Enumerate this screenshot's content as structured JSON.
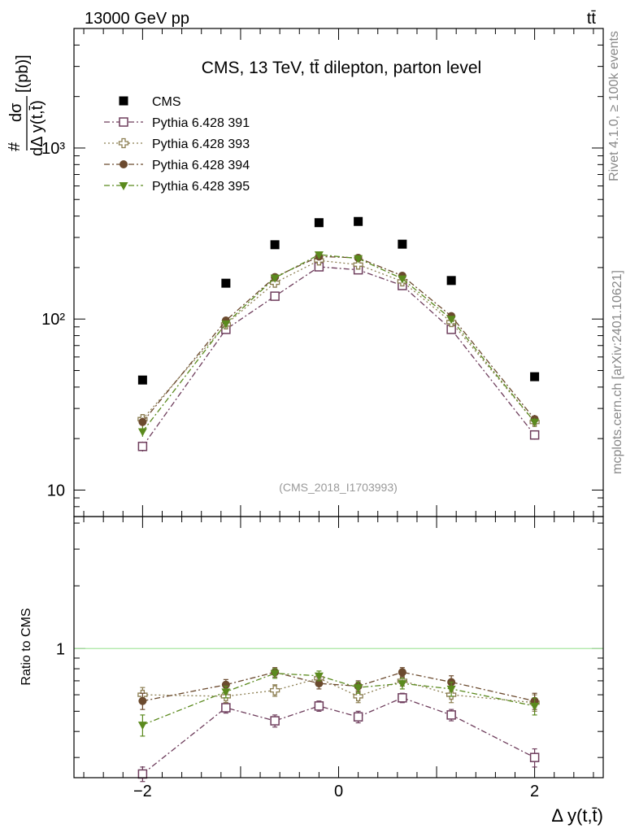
{
  "header": {
    "left": "13000 GeV pp",
    "right": "tt̄"
  },
  "side_labels": {
    "rivet": "Rivet 4.1.0, ≥ 100k events",
    "mcplots": "mcplots.cern.ch [arXiv:2401.10621]"
  },
  "chart_data": {
    "type": "scatter",
    "title": "CMS, 13 TeV, tt̄ dilepton, parton level",
    "analysis_tag": "(CMS_2018_I1703993)",
    "xlabel": "Δ y(t,t̄)",
    "ylabel_top": "#",
    "ylabel_num": "dσ",
    "ylabel_den": "dΔ y(t,t̄)",
    "ylabel_unit": "[(pb)]",
    "ratio_ylabel": "Ratio to CMS",
    "xlim": [
      -2.7,
      2.7
    ],
    "ylim": [
      7,
      5000
    ],
    "yscale": "log",
    "ratio_ylim": [
      0.24,
      4.3
    ],
    "ratio_yscale": "log",
    "x_ticks": [
      "−2",
      "0",
      "2"
    ],
    "x_tick_values": [
      -2,
      0,
      2
    ],
    "y_ticks": [
      "10",
      "10²",
      "10³"
    ],
    "y_tick_values": [
      10,
      100,
      1000
    ],
    "ratio_y_ticks": [
      "1"
    ],
    "ratio_y_tick_values": [
      1
    ],
    "x": [
      -2.0,
      -1.15,
      -0.65,
      -0.2,
      0.2,
      0.65,
      1.15,
      2.0
    ],
    "legend_position": "top-left",
    "series": [
      {
        "name": "CMS",
        "marker": "square-filled",
        "color": "#000000",
        "line": "none",
        "values": [
          44,
          162,
          272,
          366,
          372,
          274,
          168,
          46
        ],
        "errors": [
          0,
          0,
          0,
          0,
          0,
          0,
          0,
          0
        ],
        "ratio": [
          1,
          1,
          1,
          1,
          1,
          1,
          1,
          1
        ],
        "ratio_errors": [
          0,
          0,
          0,
          0,
          0,
          0,
          0,
          0
        ]
      },
      {
        "name": "Pythia 6.428 391",
        "marker": "square-open",
        "color": "#6e3d5c",
        "line": "dashdot",
        "values": [
          18,
          87,
          136,
          202,
          194,
          157,
          87,
          21
        ],
        "errors": [
          1.2,
          4,
          5,
          6,
          6,
          5,
          4,
          1.3
        ],
        "ratio": [
          0.25,
          0.52,
          0.45,
          0.53,
          0.47,
          0.58,
          0.48,
          0.3
        ],
        "ratio_errors": [
          0.02,
          0.03,
          0.03,
          0.03,
          0.03,
          0.03,
          0.03,
          0.03
        ]
      },
      {
        "name": "Pythia 6.428 393",
        "marker": "cross-open",
        "color": "#8b7d50",
        "line": "dotted",
        "values": [
          26,
          93,
          163,
          220,
          208,
          166,
          96,
          25
        ],
        "errors": [
          1.5,
          4,
          5,
          6,
          6,
          5,
          4,
          1.5
        ],
        "ratio": [
          0.6,
          0.59,
          0.63,
          0.72,
          0.59,
          0.7,
          0.6,
          0.55
        ],
        "ratio_errors": [
          0.05,
          0.04,
          0.04,
          0.04,
          0.04,
          0.04,
          0.05,
          0.05
        ]
      },
      {
        "name": "Pythia 6.428 394",
        "marker": "circle-filled",
        "color": "#6b4a2e",
        "line": "dashdot",
        "values": [
          25,
          98,
          176,
          232,
          228,
          179,
          104,
          26
        ],
        "errors": [
          1.5,
          4,
          5,
          6,
          6,
          5,
          4,
          1.5
        ],
        "ratio": [
          0.56,
          0.67,
          0.77,
          0.68,
          0.66,
          0.77,
          0.69,
          0.56
        ],
        "ratio_errors": [
          0.05,
          0.04,
          0.04,
          0.04,
          0.04,
          0.04,
          0.05,
          0.05
        ]
      },
      {
        "name": "Pythia 6.428 395",
        "marker": "triangle-down-filled",
        "color": "#5b8a1e",
        "line": "dashdot",
        "values": [
          22,
          94,
          174,
          238,
          226,
          172,
          100,
          25
        ],
        "errors": [
          1.5,
          4,
          5,
          6,
          6,
          5,
          4,
          1.5
        ],
        "ratio": [
          0.43,
          0.62,
          0.76,
          0.74,
          0.65,
          0.68,
          0.64,
          0.53
        ],
        "ratio_errors": [
          0.05,
          0.04,
          0.04,
          0.04,
          0.04,
          0.04,
          0.05,
          0.05
        ]
      }
    ]
  }
}
